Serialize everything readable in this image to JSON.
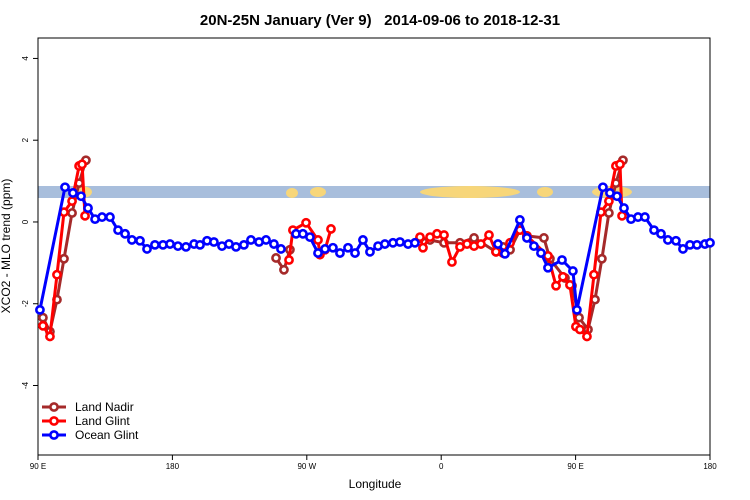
{
  "chart_data": {
    "type": "line",
    "title": "20N-25N January (Ver 9)   2014-09-06 to 2018-12-31",
    "x_label": "Longitude",
    "y_label": "XCO2 - MLO trend (ppm)",
    "xlim": [
      90,
      540
    ],
    "ylim": [
      -5.7,
      4.5
    ],
    "xticks": [
      {
        "value": 90,
        "label": "90 E"
      },
      180,
      {
        "value": 270,
        "label": "90 W"
      },
      {
        "value": 360,
        "label": "0"
      },
      {
        "value": 450,
        "label": "90 E"
      },
      {
        "value": 540,
        "label": "180"
      }
    ],
    "yticks": [
      -4,
      -2,
      0,
      2,
      4
    ],
    "legend": "bottom-left",
    "series": [
      {
        "name": "Land Nadir",
        "color": "#a52a2a",
        "x": [
          93.3,
          98.0,
          102.7,
          107.4,
          112.8,
          117.5,
          122.1,
          null,
          249.4,
          254.7,
          258.7,
          null,
          345.8,
          352.5,
          361.9,
          372.6,
          382.0,
          396.7,
          401.4,
          406.1,
          412.7,
          417.4,
          428.8,
          432.8,
          442.9,
          447.6,
          452.3,
          458.3,
          463.0,
          467.6,
          472.3,
          477.0,
          481.7
        ],
        "values": [
          -2.34,
          -2.68,
          -1.9,
          -0.9,
          0.22,
          0.95,
          1.51,
          null,
          -0.88,
          -1.17,
          -0.68,
          null,
          -0.39,
          -0.44,
          -0.51,
          -0.51,
          -0.39,
          -0.73,
          -0.61,
          -0.68,
          -0.2,
          -0.34,
          -0.39,
          -0.9,
          -1.37,
          -1.56,
          -2.34,
          -2.63,
          -1.9,
          -0.9,
          0.22,
          0.95,
          1.51
        ]
      },
      {
        "name": "Land Glint",
        "color": "#ff0000",
        "x": [
          93.3,
          98.0,
          102.7,
          107.4,
          112.8,
          117.5,
          119.5,
          121.5,
          null,
          258.1,
          260.7,
          269.5,
          277.5,
          278.8,
          282.2,
          286.2,
          null,
          345.8,
          347.8,
          352.5,
          357.2,
          361.9,
          367.2,
          372.6,
          377.3,
          382.0,
          386.6,
          392.0,
          396.7,
          401.4,
          406.1,
          412.7,
          417.4,
          431.5,
          436.9,
          441.5,
          446.2,
          450.2,
          452.9,
          457.6,
          462.3,
          467.0,
          472.3,
          477.0,
          479.7,
          481.1
        ],
        "values": [
          -2.54,
          -2.8,
          -1.29,
          0.24,
          0.51,
          1.37,
          1.41,
          0.15,
          null,
          -0.93,
          -0.2,
          -0.02,
          -0.44,
          -0.8,
          -0.68,
          -0.17,
          null,
          -0.37,
          -0.63,
          -0.37,
          -0.29,
          -0.32,
          -0.98,
          -0.61,
          -0.54,
          -0.59,
          -0.54,
          -0.32,
          -0.73,
          -0.76,
          -0.51,
          -0.2,
          -0.34,
          -0.83,
          -1.56,
          -1.34,
          -1.54,
          -2.56,
          -2.63,
          -2.8,
          -1.29,
          0.24,
          0.51,
          1.37,
          1.41,
          0.15
        ]
      },
      {
        "name": "Ocean Glint",
        "color": "#0000ff",
        "x": [
          91.3,
          108.1,
          113.4,
          118.8,
          123.5,
          128.2,
          132.9,
          138.2,
          143.6,
          148.3,
          152.9,
          158.3,
          163.0,
          168.3,
          173.7,
          178.4,
          183.7,
          189.1,
          194.5,
          198.5,
          203.2,
          207.8,
          213.2,
          217.9,
          222.6,
          227.9,
          232.6,
          238.0,
          242.7,
          248.0,
          252.7,
          null,
          262.8,
          267.4,
          272.1,
          277.5,
          282.2,
          287.5,
          292.2,
          297.6,
          302.3,
          307.6,
          312.3,
          317.7,
          322.3,
          327.7,
          332.4,
          337.8,
          342.4,
          null,
          398.0,
          402.7,
          412.7,
          417.4,
          422.1,
          426.8,
          431.5,
          440.9,
          448.2,
          450.9,
          468.3,
          473.0,
          477.7,
          482.4,
          487.1,
          491.8,
          496.4,
          502.5,
          507.2,
          511.8,
          517.2,
          521.9,
          526.6,
          531.3,
          536.6,
          540.0
        ],
        "values": [
          -2.15,
          0.85,
          0.71,
          0.63,
          0.34,
          0.07,
          0.12,
          0.12,
          -0.2,
          -0.29,
          -0.44,
          -0.46,
          -0.66,
          -0.56,
          -0.56,
          -0.54,
          -0.59,
          -0.61,
          -0.54,
          -0.56,
          -0.46,
          -0.49,
          -0.59,
          -0.54,
          -0.61,
          -0.56,
          -0.44,
          -0.49,
          -0.44,
          -0.54,
          -0.66,
          null,
          -0.29,
          -0.29,
          -0.37,
          -0.76,
          -0.66,
          -0.63,
          -0.76,
          -0.63,
          -0.76,
          -0.44,
          -0.73,
          -0.59,
          -0.54,
          -0.51,
          -0.49,
          -0.54,
          -0.51,
          null,
          -0.54,
          -0.78,
          0.05,
          -0.39,
          -0.59,
          -0.76,
          -1.12,
          -0.93,
          -1.2,
          -2.15,
          0.85,
          0.71,
          0.63,
          0.34,
          0.07,
          0.12,
          0.12,
          -0.2,
          -0.29,
          -0.44,
          -0.46,
          -0.66,
          -0.56,
          -0.56,
          -0.54,
          -0.51
        ]
      }
    ]
  }
}
